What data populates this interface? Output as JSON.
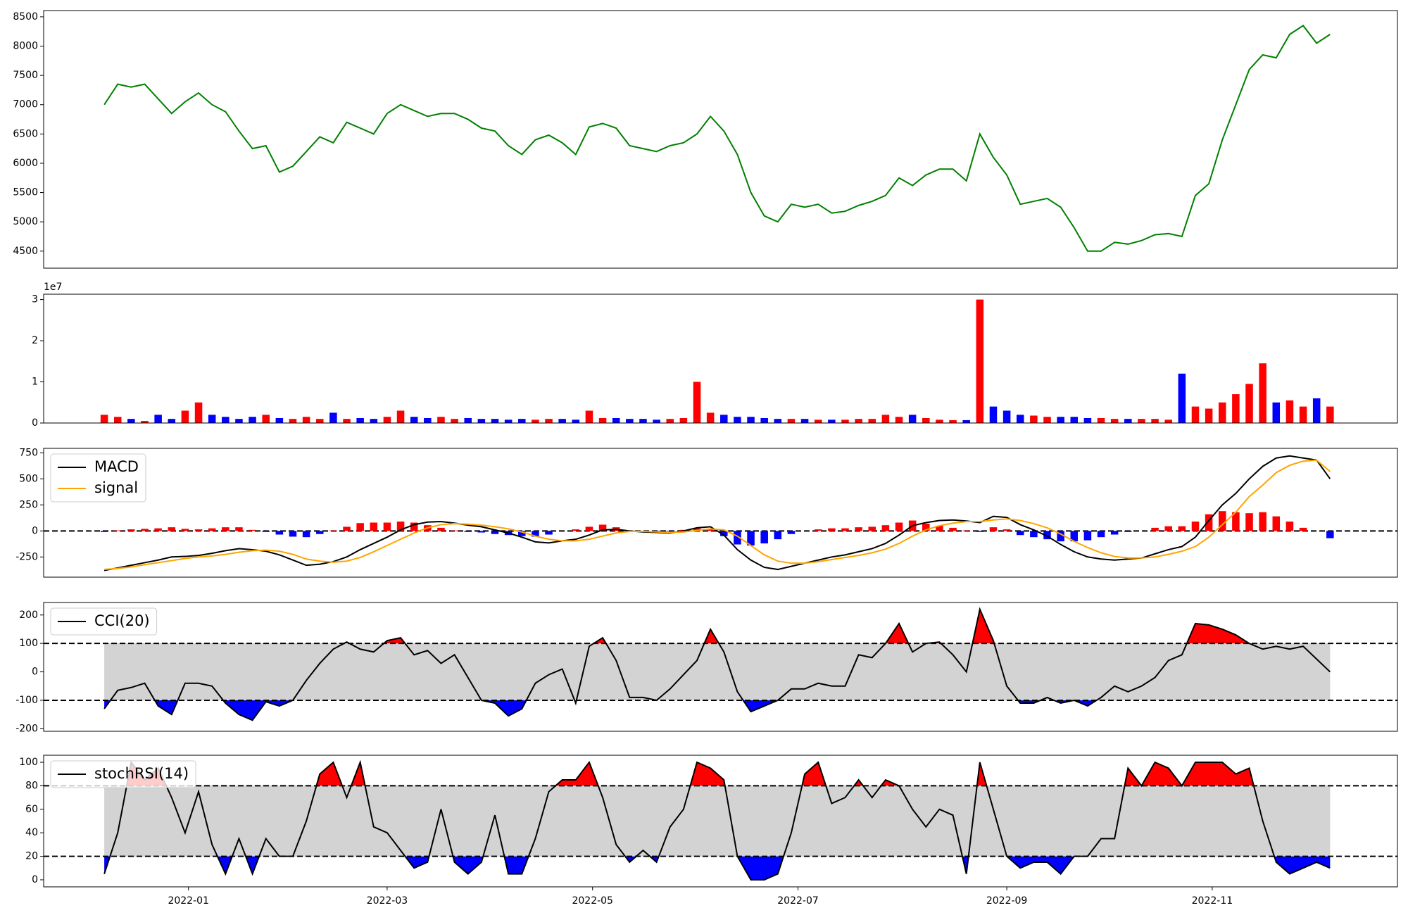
{
  "chart_data": [
    {
      "type": "line",
      "x": [
        -25,
        -21,
        -17,
        -13,
        -9,
        -5,
        -1,
        3,
        7,
        11,
        15,
        19,
        23,
        27,
        31,
        35,
        39,
        43,
        47,
        51,
        55,
        59,
        63,
        67,
        71,
        75,
        79,
        83,
        87,
        91,
        95,
        99,
        103,
        107,
        111,
        115,
        119,
        123,
        127,
        131,
        135,
        139,
        143,
        147,
        151,
        155,
        159,
        163,
        167,
        171,
        175,
        179,
        183,
        187,
        191,
        195,
        199,
        203,
        207,
        211,
        215,
        219,
        223,
        227,
        231,
        235,
        239,
        243,
        247,
        251,
        255,
        259,
        263,
        267,
        271,
        275,
        279,
        283,
        287,
        291,
        295,
        299,
        303,
        307,
        311,
        315,
        319,
        323,
        327,
        331,
        335,
        339
      ],
      "series": [
        {
          "color": "#008000",
          "values": [
            7000,
            7350,
            7300,
            7350,
            7100,
            6850,
            7050,
            7200,
            7000,
            6880,
            6550,
            6250,
            6300,
            5850,
            5950,
            6200,
            6450,
            6350,
            6700,
            6600,
            6500,
            6850,
            7000,
            6900,
            6800,
            6850,
            6850,
            6750,
            6600,
            6550,
            6300,
            6150,
            6400,
            6480,
            6350,
            6150,
            6620,
            6680,
            6600,
            6300,
            6250,
            6200,
            6300,
            6350,
            6500,
            6800,
            6550,
            6150,
            5500,
            5100,
            5000,
            5300,
            5250,
            5300,
            5150,
            5180,
            5280,
            5350,
            5450,
            5750,
            5620,
            5800,
            5900,
            5900,
            5700,
            6500,
            6100,
            5800,
            5300,
            5350,
            5400,
            5250,
            4900,
            4500,
            4500,
            4650,
            4620,
            4680,
            4780,
            4800,
            4750,
            5450,
            5650,
            6400,
            7000,
            7600,
            7850,
            7800,
            8200,
            8350,
            8050,
            8200
          ]
        }
      ],
      "xlim": [
        -43,
        359
      ],
      "ylim": [
        4209,
        8607
      ],
      "yticks": [
        4500,
        5000,
        5500,
        6000,
        6500,
        7000,
        7500,
        8000,
        8500
      ]
    },
    {
      "type": "bar",
      "offset_label": "1e7",
      "up_color": "#ff0000",
      "down_color": "#0000ff",
      "x": [
        -25,
        -21,
        -17,
        -13,
        -9,
        -5,
        -1,
        3,
        7,
        11,
        15,
        19,
        23,
        27,
        31,
        35,
        39,
        43,
        47,
        51,
        55,
        59,
        63,
        67,
        71,
        75,
        79,
        83,
        87,
        91,
        95,
        99,
        103,
        107,
        111,
        115,
        119,
        123,
        127,
        131,
        135,
        139,
        143,
        147,
        151,
        155,
        159,
        163,
        167,
        171,
        175,
        179,
        183,
        187,
        191,
        195,
        199,
        203,
        207,
        211,
        215,
        219,
        223,
        227,
        231,
        235,
        239,
        243,
        247,
        251,
        255,
        259,
        263,
        267,
        271,
        275,
        279,
        283,
        287,
        291,
        295,
        299,
        303,
        307,
        311,
        315,
        319,
        323,
        327,
        331,
        335,
        339
      ],
      "values": [
        0.2,
        0.15,
        0.1,
        0.05,
        0.2,
        0.1,
        0.3,
        0.5,
        0.2,
        0.15,
        0.1,
        0.15,
        0.2,
        0.12,
        0.1,
        0.15,
        0.1,
        0.25,
        0.1,
        0.12,
        0.1,
        0.15,
        0.3,
        0.15,
        0.12,
        0.15,
        0.1,
        0.12,
        0.1,
        0.1,
        0.08,
        0.1,
        0.08,
        0.1,
        0.1,
        0.08,
        0.3,
        0.12,
        0.12,
        0.1,
        0.1,
        0.08,
        0.1,
        0.12,
        1.0,
        0.25,
        0.2,
        0.15,
        0.15,
        0.12,
        0.1,
        0.1,
        0.1,
        0.08,
        0.08,
        0.08,
        0.1,
        0.1,
        0.2,
        0.15,
        0.2,
        0.12,
        0.08,
        0.07,
        0.07,
        3.0,
        0.4,
        0.3,
        0.2,
        0.18,
        0.15,
        0.15,
        0.15,
        0.12,
        0.12,
        0.1,
        0.1,
        0.1,
        0.1,
        0.08,
        1.2,
        0.4,
        0.35,
        0.5,
        0.7,
        0.95,
        1.45,
        0.5,
        0.55,
        0.4,
        0.6,
        0.4
      ],
      "xlim": [
        -43,
        359
      ],
      "ylim": [
        0,
        3.13
      ],
      "yticks": [
        0,
        1,
        2,
        3
      ]
    },
    {
      "type": "combo",
      "legend": "upper left",
      "hlines": [
        0
      ],
      "x": [
        -25,
        -21,
        -17,
        -13,
        -9,
        -5,
        -1,
        3,
        7,
        11,
        15,
        19,
        23,
        27,
        31,
        35,
        39,
        43,
        47,
        51,
        55,
        59,
        63,
        67,
        71,
        75,
        79,
        83,
        87,
        91,
        95,
        99,
        103,
        107,
        111,
        115,
        119,
        123,
        127,
        131,
        135,
        139,
        143,
        147,
        151,
        155,
        159,
        163,
        167,
        171,
        175,
        179,
        183,
        187,
        191,
        195,
        199,
        203,
        207,
        211,
        215,
        219,
        223,
        227,
        231,
        235,
        239,
        243,
        247,
        251,
        255,
        259,
        263,
        267,
        271,
        275,
        279,
        283,
        287,
        291,
        295,
        299,
        303,
        307,
        311,
        315,
        319,
        323,
        327,
        331,
        335,
        339
      ],
      "series": [
        {
          "kind": "bar",
          "up_color": "#ff0000",
          "down_color": "#0000ff",
          "values": [
            -10,
            5,
            15,
            20,
            25,
            35,
            20,
            15,
            25,
            35,
            35,
            10,
            -10,
            -35,
            -55,
            -60,
            -30,
            5,
            40,
            75,
            80,
            80,
            90,
            80,
            55,
            30,
            5,
            -10,
            -15,
            -30,
            -40,
            -50,
            -55,
            -35,
            0,
            15,
            40,
            60,
            35,
            5,
            -5,
            -5,
            -5,
            10,
            25,
            20,
            -50,
            -130,
            -140,
            -120,
            -80,
            -30,
            0,
            15,
            25,
            25,
            35,
            40,
            55,
            80,
            100,
            70,
            50,
            30,
            5,
            -10,
            35,
            15,
            -40,
            -60,
            -80,
            -100,
            -100,
            -90,
            -60,
            -35,
            -10,
            0,
            30,
            45,
            45,
            90,
            160,
            190,
            180,
            170,
            180,
            140,
            90,
            30,
            0,
            -70
          ]
        },
        {
          "kind": "line",
          "name": "MACD",
          "color": "#000000",
          "values": [
            -380,
            -355,
            -330,
            -305,
            -280,
            -250,
            -245,
            -235,
            -215,
            -190,
            -170,
            -180,
            -195,
            -230,
            -280,
            -330,
            -320,
            -295,
            -250,
            -180,
            -120,
            -60,
            10,
            60,
            85,
            90,
            75,
            55,
            40,
            10,
            -20,
            -60,
            -105,
            -115,
            -95,
            -80,
            -40,
            10,
            15,
            0,
            -10,
            -15,
            -20,
            0,
            30,
            40,
            -40,
            -180,
            -280,
            -350,
            -370,
            -340,
            -310,
            -280,
            -250,
            -230,
            -200,
            -170,
            -120,
            -40,
            50,
            80,
            100,
            105,
            95,
            80,
            140,
            130,
            60,
            10,
            -50,
            -130,
            -200,
            -250,
            -270,
            -280,
            -270,
            -260,
            -220,
            -180,
            -150,
            -60,
            100,
            250,
            360,
            500,
            620,
            700,
            720,
            700,
            680,
            500
          ]
        },
        {
          "kind": "line",
          "name": "signal",
          "color": "#ffa500",
          "values": [
            -370,
            -360,
            -345,
            -325,
            -305,
            -285,
            -265,
            -250,
            -240,
            -225,
            -205,
            -190,
            -185,
            -195,
            -225,
            -270,
            -290,
            -300,
            -290,
            -255,
            -200,
            -140,
            -80,
            -20,
            30,
            60,
            70,
            65,
            55,
            40,
            20,
            -10,
            -50,
            -80,
            -95,
            -95,
            -80,
            -50,
            -20,
            -5,
            -5,
            -10,
            -15,
            -10,
            5,
            20,
            10,
            -50,
            -140,
            -230,
            -290,
            -310,
            -310,
            -295,
            -275,
            -255,
            -235,
            -210,
            -175,
            -120,
            -50,
            10,
            50,
            75,
            90,
            90,
            105,
            115,
            100,
            70,
            30,
            -30,
            -100,
            -160,
            -210,
            -245,
            -260,
            -260,
            -250,
            -225,
            -195,
            -150,
            -60,
            60,
            180,
            330,
            440,
            560,
            630,
            670,
            680,
            570
          ]
        }
      ],
      "xlim": [
        -43,
        359
      ],
      "ylim": [
        -444,
        793
      ],
      "yticks": [
        -250,
        0,
        250,
        500,
        750
      ]
    },
    {
      "type": "oscillator",
      "legend": "upper left",
      "bands": [
        100,
        -100
      ],
      "band_color": "#d3d3d3",
      "above_color": "#ff0000",
      "below_color": "#0000ff",
      "x": [
        -25,
        -21,
        -17,
        -13,
        -9,
        -5,
        -1,
        3,
        7,
        11,
        15,
        19,
        23,
        27,
        31,
        35,
        39,
        43,
        47,
        51,
        55,
        59,
        63,
        67,
        71,
        75,
        79,
        83,
        87,
        91,
        95,
        99,
        103,
        107,
        111,
        115,
        119,
        123,
        127,
        131,
        135,
        139,
        143,
        147,
        151,
        155,
        159,
        163,
        167,
        171,
        175,
        179,
        183,
        187,
        191,
        195,
        199,
        203,
        207,
        211,
        215,
        219,
        223,
        227,
        231,
        235,
        239,
        243,
        247,
        251,
        255,
        259,
        263,
        267,
        271,
        275,
        279,
        283,
        287,
        291,
        295,
        299,
        303,
        307,
        311,
        315,
        319,
        323,
        327,
        331,
        335,
        339
      ],
      "series": [
        {
          "name": "CCI(20)",
          "color": "#000000",
          "values": [
            -130,
            -65,
            -55,
            -40,
            -120,
            -150,
            -40,
            -40,
            -50,
            -110,
            -150,
            -170,
            -105,
            -120,
            -100,
            -30,
            30,
            80,
            105,
            80,
            70,
            110,
            120,
            60,
            75,
            30,
            60,
            -20,
            -100,
            -110,
            -155,
            -130,
            -40,
            -10,
            10,
            -110,
            90,
            120,
            40,
            -90,
            -90,
            -100,
            -60,
            -10,
            40,
            150,
            70,
            -70,
            -140,
            -120,
            -100,
            -60,
            -60,
            -40,
            -50,
            -50,
            60,
            50,
            100,
            170,
            70,
            100,
            105,
            60,
            0,
            220,
            110,
            -50,
            -110,
            -110,
            -90,
            -110,
            -100,
            -120,
            -90,
            -50,
            -70,
            -50,
            -20,
            40,
            60,
            170,
            165,
            150,
            130,
            100,
            80,
            90,
            80,
            90,
            45,
            0
          ]
        }
      ],
      "xlim": [
        -43,
        359
      ],
      "ylim": [
        -209,
        244
      ],
      "yticks": [
        -200,
        -100,
        0,
        100,
        200
      ]
    },
    {
      "type": "oscillator",
      "legend": "upper left",
      "bands": [
        80,
        20
      ],
      "band_color": "#d3d3d3",
      "above_color": "#ff0000",
      "below_color": "#0000ff",
      "x": [
        -25,
        -21,
        -17,
        -13,
        -9,
        -5,
        -1,
        3,
        7,
        11,
        15,
        19,
        23,
        27,
        31,
        35,
        39,
        43,
        47,
        51,
        55,
        59,
        63,
        67,
        71,
        75,
        79,
        83,
        87,
        91,
        95,
        99,
        103,
        107,
        111,
        115,
        119,
        123,
        127,
        131,
        135,
        139,
        143,
        147,
        151,
        155,
        159,
        163,
        167,
        171,
        175,
        179,
        183,
        187,
        191,
        195,
        199,
        203,
        207,
        211,
        215,
        219,
        223,
        227,
        231,
        235,
        239,
        243,
        247,
        251,
        255,
        259,
        263,
        267,
        271,
        275,
        279,
        283,
        287,
        291,
        295,
        299,
        303,
        307,
        311,
        315,
        319,
        323,
        327,
        331,
        335,
        339
      ],
      "series": [
        {
          "name": "stochRSI(14)",
          "color": "#000000",
          "values": [
            5,
            40,
            100,
            85,
            95,
            70,
            40,
            75,
            30,
            5,
            35,
            5,
            35,
            20,
            20,
            50,
            90,
            100,
            70,
            100,
            45,
            40,
            25,
            10,
            15,
            60,
            15,
            5,
            15,
            55,
            5,
            5,
            35,
            75,
            85,
            85,
            100,
            70,
            30,
            15,
            25,
            15,
            45,
            60,
            100,
            95,
            85,
            20,
            0,
            0,
            5,
            40,
            90,
            100,
            65,
            70,
            85,
            70,
            85,
            80,
            60,
            45,
            60,
            55,
            5,
            100,
            60,
            20,
            10,
            15,
            15,
            5,
            20,
            20,
            35,
            35,
            95,
            80,
            100,
            95,
            80,
            100,
            100,
            100,
            90,
            95,
            50,
            15,
            5,
            10,
            15,
            10
          ]
        }
      ],
      "xlim": [
        -43,
        359
      ],
      "ylim": [
        -6,
        106
      ],
      "yticks": [
        0,
        20,
        40,
        60,
        80,
        100
      ],
      "xticks": [
        {
          "value": 0,
          "label": "2022-01"
        },
        {
          "value": 59,
          "label": "2022-03"
        },
        {
          "value": 120,
          "label": "2022-05"
        },
        {
          "value": 181,
          "label": "2022-07"
        },
        {
          "value": 243,
          "label": "2022-09"
        },
        {
          "value": 304,
          "label": "2022-11"
        }
      ]
    }
  ]
}
